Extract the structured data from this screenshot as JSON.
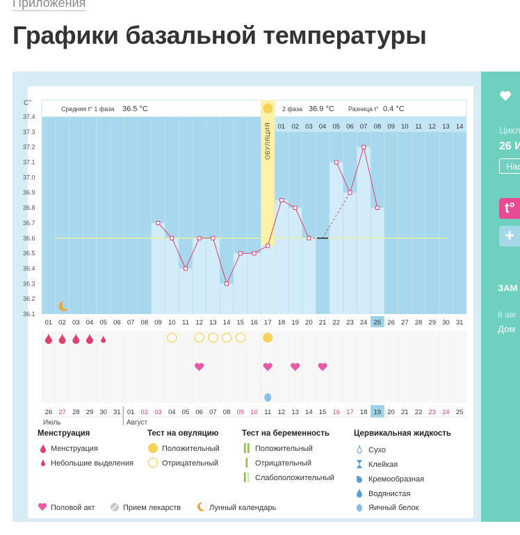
{
  "breadcrumb": "Приложения",
  "title": "Графики базальной температуры",
  "colors": {
    "bg_blue": "#a8d8ed",
    "light_cell": "#d3ecfa",
    "phase_line": "#e6f0a8",
    "ovulation": "#fdf2a8",
    "accent_red": "#e0406b",
    "sidebar": "#6fd0c0",
    "pink": "#e85aa8",
    "yellow": "#f5d25a",
    "today": "#9dd2e8"
  },
  "sidebar": {
    "heart_icon": "heart-icon",
    "cycle_label": "Цикл",
    "cycle_value": "26 И",
    "nav_button": "Нас",
    "temp_button": "t°",
    "add_button": "+",
    "notes_label": "ЗАМ",
    "note_date": "8 авг",
    "note_text": "Дом"
  },
  "chart_data": {
    "type": "line",
    "unit": "С°",
    "ylim": [
      36.1,
      37.4
    ],
    "yticks": [
      "37.4",
      "37.3",
      "37.2",
      "37.1",
      "37.0",
      "36.9",
      "36.8",
      "36.7",
      "36.6",
      "36.5",
      "36.4",
      "36.3",
      "36.2",
      "36.1"
    ],
    "x": [
      "01",
      "02",
      "03",
      "04",
      "05",
      "06",
      "07",
      "08",
      "09",
      "10",
      "11",
      "12",
      "13",
      "14",
      "15",
      "16",
      "17",
      "18",
      "19",
      "20",
      "21",
      "22",
      "23",
      "24",
      "25",
      "26",
      "27",
      "28",
      "29",
      "30",
      "31"
    ],
    "values": [
      null,
      null,
      null,
      null,
      null,
      null,
      null,
      null,
      36.7,
      36.6,
      36.4,
      36.6,
      36.6,
      36.3,
      36.5,
      36.5,
      36.55,
      36.85,
      36.8,
      36.6,
      null,
      37.1,
      36.9,
      37.2,
      36.8,
      null,
      null,
      null,
      null,
      null,
      null
    ],
    "dashed_segments": [
      [
        20,
        21
      ],
      [
        21,
        23
      ]
    ],
    "phase1_label": "Средняя t° 1 фаза",
    "phase1_value": "36.5 °C",
    "phase2_label": "2 фаза",
    "phase2_value": "36.9 °C",
    "diff_label": "Разница t°",
    "diff_value": "0.4 °C",
    "average_line": 36.6,
    "ovulation_label": "ОВУЛЯЦИЯ",
    "ovulation_day": 17,
    "phase2_days": [
      "01",
      "02",
      "03",
      "04",
      "05",
      "06",
      "07",
      "08",
      "09",
      "10",
      "11",
      "12",
      "13",
      "14"
    ],
    "today_index": 25,
    "menstruation_days": [
      1,
      2,
      3,
      4
    ],
    "small_discharge_days": [
      5
    ],
    "ovulation_test_negative": [
      10,
      12,
      13,
      14,
      15
    ],
    "ovulation_test_positive": [
      17
    ],
    "intercourse_days": [
      12,
      17,
      19,
      21
    ],
    "egg_white_days": [
      17
    ],
    "moon_day": 2,
    "cycle_dates": [
      "26",
      "27",
      "28",
      "29",
      "30",
      "31",
      "01",
      "02",
      "03",
      "04",
      "05",
      "06",
      "07",
      "08",
      "09",
      "10",
      "11",
      "12",
      "13",
      "14",
      "15",
      "16",
      "17",
      "18",
      "19",
      "20",
      "21",
      "22",
      "23",
      "24",
      "25"
    ],
    "weekend_indices": [
      1,
      7,
      8,
      14,
      15,
      21,
      22,
      28,
      29
    ],
    "cycle_today_index": 25,
    "month_july": "Июль",
    "month_august": "Август"
  },
  "legend": {
    "menstruation": {
      "title": "Менструация",
      "items": [
        "Менструация",
        "Небольшие выделения"
      ]
    },
    "ovulation_test": {
      "title": "Тест на овуляцию",
      "items": [
        "Положительный",
        "Отрицательный"
      ]
    },
    "pregnancy_test": {
      "title": "Тест на беременность",
      "items": [
        "Положительный",
        "Отрицательный",
        "Слабоположительный"
      ]
    },
    "cervical": {
      "title": "Цервикальная жидкость",
      "items": [
        "Сухо",
        "Клейкая",
        "Кремообразная",
        "Водянистая",
        "Яичный белок"
      ]
    },
    "bottom": [
      "Половой акт",
      "Прием лекарств",
      "Лунный календарь"
    ]
  }
}
